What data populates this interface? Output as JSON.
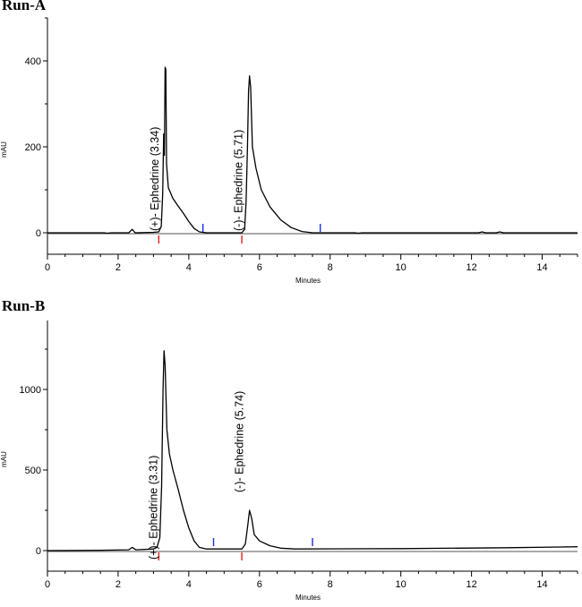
{
  "chart_data": [
    {
      "type": "line",
      "title": "Run-A",
      "xlabel": "Minutes",
      "ylabel": "mAU",
      "xlim": [
        0,
        15
      ],
      "ylim": [
        -50,
        500
      ],
      "xticks": [
        0,
        2,
        4,
        6,
        8,
        10,
        12,
        14
      ],
      "yticks": [
        0,
        200,
        400
      ],
      "peaks": [
        {
          "name": "(+)- Ephedrine",
          "rt": 3.34,
          "label": "(+)- Ephedrine  (3.34)"
        },
        {
          "name": "(-)- Ephedrine",
          "rt": 5.71,
          "label": "(-)- Ephedrine  (5.71)"
        }
      ],
      "markers": {
        "start": [
          3.15,
          5.5
        ],
        "end": [
          4.4,
          7.72
        ]
      },
      "series": [
        {
          "name": "trace",
          "points": [
            [
              0,
              0
            ],
            [
              1.6,
              0
            ],
            [
              1.7,
              -1
            ],
            [
              1.8,
              0
            ],
            [
              2.3,
              0
            ],
            [
              2.4,
              8
            ],
            [
              2.48,
              0
            ],
            [
              3.0,
              1
            ],
            [
              3.15,
              2
            ],
            [
              3.22,
              15
            ],
            [
              3.26,
              90
            ],
            [
              3.29,
              230
            ],
            [
              3.31,
              180
            ],
            [
              3.33,
              385
            ],
            [
              3.35,
              380
            ],
            [
              3.37,
              160
            ],
            [
              3.42,
              105
            ],
            [
              3.55,
              80
            ],
            [
              3.7,
              62
            ],
            [
              3.85,
              45
            ],
            [
              4.0,
              26
            ],
            [
              4.15,
              10
            ],
            [
              4.3,
              2
            ],
            [
              4.5,
              0
            ],
            [
              5.5,
              0
            ],
            [
              5.58,
              8
            ],
            [
              5.62,
              70
            ],
            [
              5.66,
              200
            ],
            [
              5.69,
              330
            ],
            [
              5.72,
              365
            ],
            [
              5.75,
              340
            ],
            [
              5.8,
              200
            ],
            [
              5.9,
              150
            ],
            [
              6.05,
              100
            ],
            [
              6.3,
              60
            ],
            [
              6.6,
              30
            ],
            [
              6.9,
              12
            ],
            [
              7.2,
              3
            ],
            [
              7.5,
              0
            ],
            [
              8.7,
              0
            ],
            [
              8.8,
              -1
            ],
            [
              8.9,
              0
            ],
            [
              12.2,
              0
            ],
            [
              12.3,
              2
            ],
            [
              12.4,
              0
            ],
            [
              12.7,
              0
            ],
            [
              12.8,
              2
            ],
            [
              12.9,
              0
            ],
            [
              15,
              0
            ]
          ]
        }
      ]
    },
    {
      "type": "line",
      "title": "Run-B",
      "xlabel": "Minutes",
      "ylabel": "mAU",
      "xlim": [
        0,
        15
      ],
      "ylim": [
        -100,
        1400
      ],
      "xticks": [
        0,
        2,
        4,
        6,
        8,
        10,
        12,
        14
      ],
      "yticks": [
        0,
        500,
        1000
      ],
      "peaks": [
        {
          "name": "(+)- Ephedrine",
          "rt": 3.31,
          "label": "(+)- Ephedrine  (3.31)"
        },
        {
          "name": "(-)- Ephedrine",
          "rt": 5.74,
          "label": "(-)- Ephedrine  (5.74)"
        }
      ],
      "markers": {
        "start": [
          3.15,
          5.5
        ],
        "end": [
          4.7,
          7.5
        ]
      },
      "series": [
        {
          "name": "trace",
          "points": [
            [
              0,
              0
            ],
            [
              1.5,
              2
            ],
            [
              2.3,
              5
            ],
            [
              2.4,
              20
            ],
            [
              2.5,
              5
            ],
            [
              3.0,
              10
            ],
            [
              3.1,
              20
            ],
            [
              3.18,
              80
            ],
            [
              3.23,
              400
            ],
            [
              3.27,
              1000
            ],
            [
              3.3,
              1240
            ],
            [
              3.33,
              1150
            ],
            [
              3.38,
              750
            ],
            [
              3.45,
              600
            ],
            [
              3.55,
              500
            ],
            [
              3.7,
              380
            ],
            [
              3.85,
              250
            ],
            [
              4.0,
              140
            ],
            [
              4.15,
              60
            ],
            [
              4.3,
              20
            ],
            [
              4.5,
              10
            ],
            [
              5.5,
              10
            ],
            [
              5.6,
              40
            ],
            [
              5.67,
              160
            ],
            [
              5.72,
              250
            ],
            [
              5.78,
              200
            ],
            [
              5.85,
              100
            ],
            [
              6.0,
              60
            ],
            [
              6.3,
              30
            ],
            [
              6.6,
              15
            ],
            [
              7.0,
              10
            ],
            [
              10,
              12
            ],
            [
              13,
              18
            ],
            [
              14.5,
              22
            ],
            [
              15,
              24
            ]
          ]
        }
      ]
    }
  ]
}
